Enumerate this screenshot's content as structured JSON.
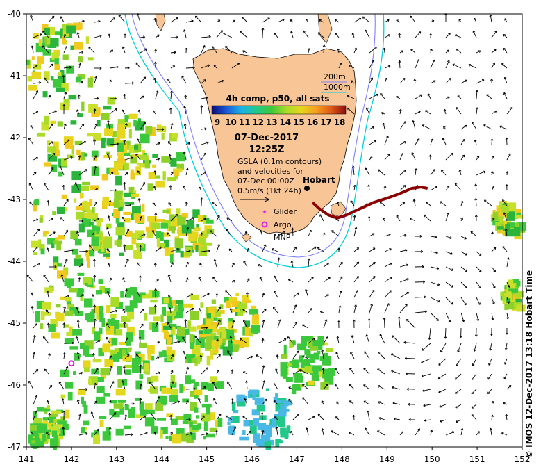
{
  "map": {
    "lon_range": [
      141,
      152
    ],
    "lat_range": [
      -47,
      -40
    ],
    "lon_ticks": [
      "141",
      "142",
      "143",
      "144",
      "145",
      "146",
      "147",
      "148",
      "149",
      "150",
      "151",
      "152"
    ],
    "lat_ticks": [
      "-40",
      "-41",
      "-42",
      "-43",
      "-44",
      "-45",
      "-46",
      "-47"
    ],
    "background": "#ffffff",
    "land_color": "#f8c596",
    "contour_200m_color": "#7f7fff",
    "contour_1000m_color": "#00d0d8"
  },
  "legend": {
    "contour_200m": "200m",
    "contour_1000m": "1000m"
  },
  "colorbar": {
    "title": "4h comp, p50, all sats",
    "ticks": [
      "9",
      "10",
      "11",
      "12",
      "13",
      "14",
      "15",
      "16",
      "17",
      "18"
    ],
    "colors": [
      "#0a0a78",
      "#1a5ad8",
      "#1ab4e6",
      "#22c88a",
      "#3cc83c",
      "#a8dc28",
      "#e6d61e",
      "#f4a01e",
      "#e05a18",
      "#8c1010"
    ]
  },
  "annotation": {
    "date": "07-Dec-2017",
    "time": "12:25Z",
    "gsla_line1": "GSLA (0.1m contours)",
    "gsla_line2": "and velocities for",
    "gsla_line3": "07-Dec 00:00Z",
    "scale_label": "0.5m/s (1kt 24h)"
  },
  "places": {
    "hobart": "Hobart",
    "glider": "Glider",
    "argo": "Argo",
    "mnp": "MNP"
  },
  "glider_track": [
    [
      147.35,
      -43.05
    ],
    [
      147.5,
      -43.15
    ],
    [
      147.7,
      -43.25
    ],
    [
      147.9,
      -43.3
    ],
    [
      148.1,
      -43.25
    ],
    [
      148.4,
      -43.15
    ],
    [
      148.7,
      -43.05
    ],
    [
      149.0,
      -42.98
    ],
    [
      149.3,
      -42.9
    ],
    [
      149.55,
      -42.82
    ],
    [
      149.75,
      -42.8
    ],
    [
      149.9,
      -42.82
    ]
  ],
  "argo_float": [
    142.0,
    -45.65
  ],
  "credit": "© IMOS 12-Dec-2017 13:18 Hobart Time"
}
